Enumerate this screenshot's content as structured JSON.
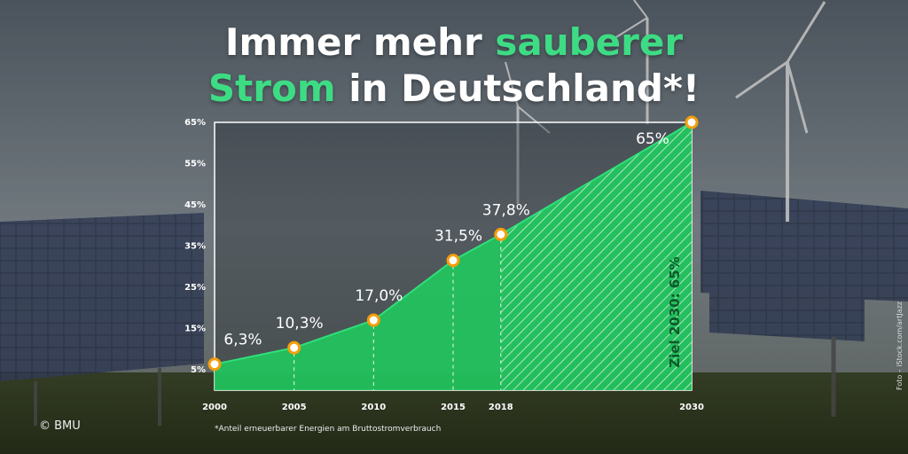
{
  "title": {
    "line1_plain": "Immer mehr ",
    "line1_accent": "sauberer",
    "line2_accent": "Strom",
    "line2_plain": " in Deutschland*!"
  },
  "colors": {
    "accent": "#3ddc84",
    "area_fill": "#22c55e",
    "marker": "#f59e0b"
  },
  "chart_data": {
    "type": "area",
    "x": [
      2000,
      2005,
      2010,
      2015,
      2018,
      2030
    ],
    "values": [
      6.3,
      10.3,
      17.0,
      31.5,
      37.8,
      65
    ],
    "data_labels": [
      "6,3%",
      "10,3%",
      "17,0%",
      "31,5%",
      "37,8%",
      "65%"
    ],
    "x_tick_labels": [
      "2000",
      "2005",
      "2010",
      "2015",
      "2018",
      "2030"
    ],
    "y_ticks": [
      5,
      15,
      25,
      35,
      45,
      55,
      65
    ],
    "y_tick_labels": [
      "5%",
      "15%",
      "25%",
      "35%",
      "45%",
      "55%",
      "65%"
    ],
    "ylim": [
      0,
      65
    ],
    "grid": false,
    "projection_from": 2018,
    "projection_label": "Ziel 2030: 65%"
  },
  "footnote": "*Anteil erneuerbarer Energien am Bruttostromverbrauch",
  "copyright": "© BMU",
  "photo_credit": "Foto – iStock.com/artJazz"
}
